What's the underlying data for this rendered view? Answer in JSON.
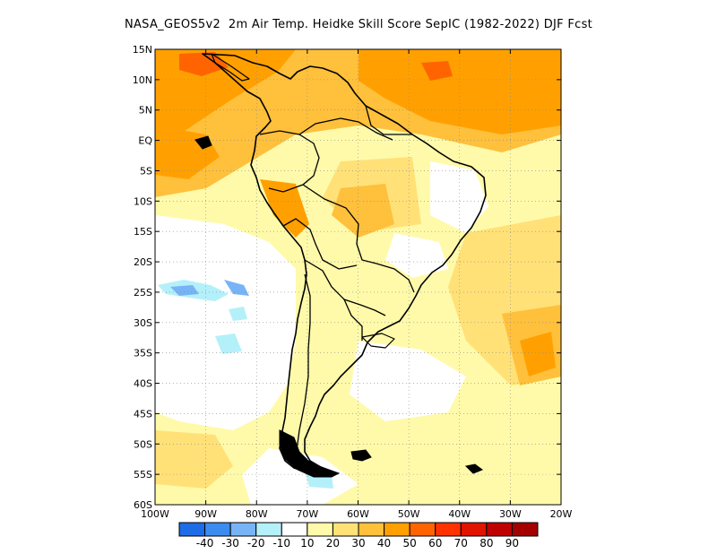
{
  "title": "NASA_GEOS5v2  2m Air Temp. Heidke Skill Score SepIC (1982-2022) DJF Fcst",
  "lat_labels": [
    "15N",
    "10N",
    "5N",
    "EQ",
    "5S",
    "10S",
    "15S",
    "20S",
    "25S",
    "30S",
    "35S",
    "40S",
    "45S",
    "50S",
    "55S",
    "60S"
  ],
  "lon_labels": [
    "100W",
    "90W",
    "80W",
    "70W",
    "60W",
    "50W",
    "40W",
    "30W",
    "20W"
  ],
  "map_extent": {
    "lon_min": -100,
    "lon_max": -20,
    "lat_min": -60,
    "lat_max": 15
  },
  "colorbar": {
    "labels": [
      "-40",
      "-30",
      "-20",
      "-10",
      "10",
      "20",
      "30",
      "40",
      "50",
      "60",
      "70",
      "80",
      "90"
    ],
    "colors": [
      "#1e6ce6",
      "#3c8cf0",
      "#78b4f5",
      "#b4f0fa",
      "#ffffff",
      "#fffaaa",
      "#ffe178",
      "#ffc03c",
      "#ffa000",
      "#ff6400",
      "#ff3200",
      "#e11400",
      "#c00000",
      "#a50000"
    ]
  }
}
